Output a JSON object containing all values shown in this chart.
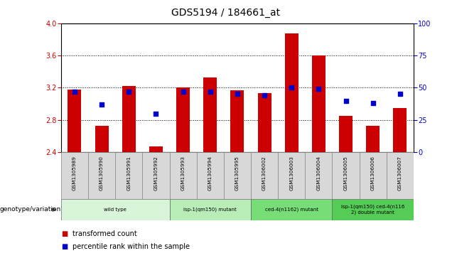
{
  "title": "GDS5194 / 184661_at",
  "samples": [
    "GSM1305989",
    "GSM1305990",
    "GSM1305991",
    "GSM1305992",
    "GSM1305993",
    "GSM1305994",
    "GSM1305995",
    "GSM1306002",
    "GSM1306003",
    "GSM1306004",
    "GSM1306005",
    "GSM1306006",
    "GSM1306007"
  ],
  "transformed_count": [
    3.18,
    2.73,
    3.22,
    2.47,
    3.2,
    3.33,
    3.17,
    3.13,
    3.87,
    3.6,
    2.85,
    2.73,
    2.95
  ],
  "percentile_rank": [
    47,
    37,
    47,
    30,
    47,
    47,
    45,
    44,
    50,
    49,
    40,
    38,
    45
  ],
  "ylim_left": [
    2.4,
    4.0
  ],
  "ylim_right": [
    0,
    100
  ],
  "yticks_left": [
    2.4,
    2.8,
    3.2,
    3.6,
    4.0
  ],
  "yticks_right": [
    0,
    25,
    50,
    75,
    100
  ],
  "groups": [
    {
      "label": "wild type",
      "start": 0,
      "end": 3,
      "color": "#d9f5d9"
    },
    {
      "label": "isp-1(qm150) mutant",
      "start": 4,
      "end": 6,
      "color": "#b8edb8"
    },
    {
      "label": "ced-4(n1162) mutant",
      "start": 7,
      "end": 9,
      "color": "#77dd77"
    },
    {
      "label": "isp-1(qm150) ced-4(n116\n2) double mutant",
      "start": 10,
      "end": 12,
      "color": "#55cc55"
    }
  ],
  "bar_color": "#cc0000",
  "dot_color": "#0000cc",
  "sample_bg": "#d8d8d8",
  "legend_bar_label": "transformed count",
  "legend_dot_label": "percentile rank within the sample",
  "genotype_label": "genotype/variation"
}
